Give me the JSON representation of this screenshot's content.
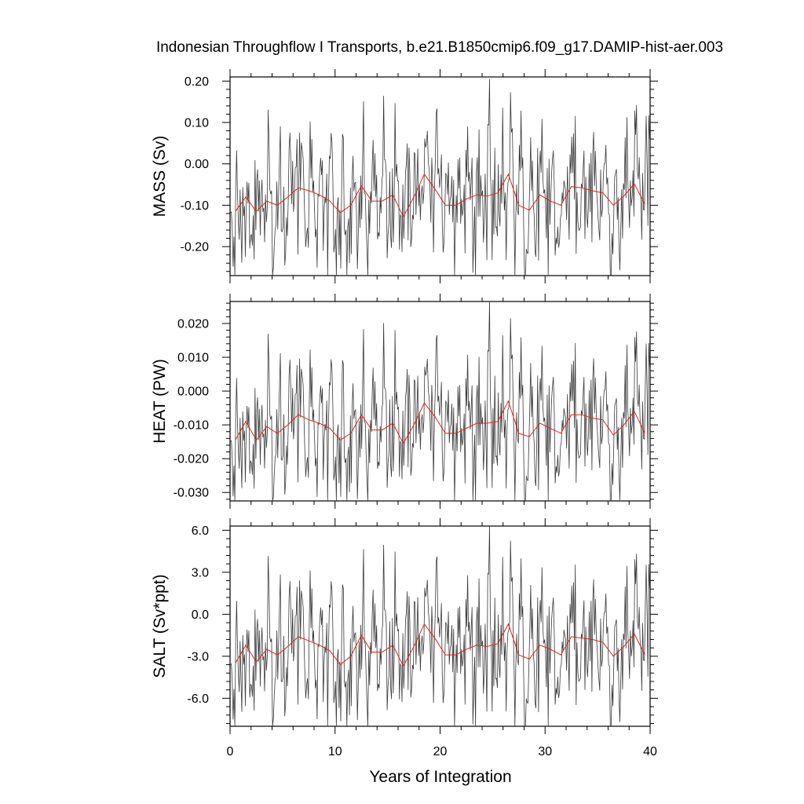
{
  "figure": {
    "title": "Indonesian Throughflow I Transports, b.e21.B1850cmip6.f09_g17.DAMIP-hist-aer.003",
    "xlabel": "Years of Integration",
    "x_ticks": [
      "0",
      "10",
      "20",
      "30",
      "40"
    ],
    "colors": {
      "monthly": "#3a3a3a",
      "annual": "#e0201a",
      "axes": "#000000"
    }
  },
  "chart_data": [
    {
      "type": "line",
      "title": "Indonesian Throughflow I Transports, b.e21.B1850cmip6.f09_g17.DAMIP-hist-aer.003",
      "xlabel": "Years of Integration",
      "ylabel": "MASS (Sv)",
      "xlim": [
        0,
        40
      ],
      "ylim": [
        -0.27,
        0.21
      ],
      "y_ticks": [
        0.2,
        0.1,
        0.0,
        -0.1,
        -0.2
      ],
      "y_tick_labels": [
        "0.20",
        "0.10",
        "0.00",
        "-0.10",
        "-0.20"
      ],
      "monthly_min": -0.27,
      "monthly_max": 0.205,
      "series": [
        {
          "name": "",
          "role": "monthly",
          "color": "#3a3a3a"
        },
        {
          "name": "",
          "role": "annual",
          "color": "#e0201a",
          "x": [
            0.5,
            1.5,
            2.5,
            3.5,
            4.5,
            5.5,
            6.5,
            7.5,
            8.5,
            9.5,
            10.5,
            11.5,
            12.5,
            13.5,
            14.5,
            15.5,
            16.5,
            17.5,
            18.5,
            19.5,
            20.5,
            21.5,
            22.5,
            23.5,
            24.5,
            25.5,
            26.5,
            27.5,
            28.5,
            29.5,
            30.5,
            31.5,
            32.5,
            33.5,
            34.5,
            35.5,
            36.5,
            37.5,
            38.5,
            39.5
          ],
          "y": [
            -0.115,
            -0.08,
            -0.115,
            -0.09,
            -0.1,
            -0.08,
            -0.058,
            -0.065,
            -0.075,
            -0.09,
            -0.118,
            -0.1,
            -0.053,
            -0.09,
            -0.09,
            -0.075,
            -0.128,
            -0.08,
            -0.025,
            -0.06,
            -0.1,
            -0.1,
            -0.085,
            -0.075,
            -0.078,
            -0.07,
            -0.025,
            -0.1,
            -0.112,
            -0.075,
            -0.09,
            -0.1,
            -0.055,
            -0.058,
            -0.065,
            -0.07,
            -0.1,
            -0.078,
            -0.048,
            -0.098
          ]
        }
      ]
    },
    {
      "type": "line",
      "xlabel": "Years of Integration",
      "ylabel": "HEAT (PW)",
      "xlim": [
        0,
        40
      ],
      "ylim": [
        -0.0325,
        0.0265
      ],
      "y_ticks": [
        0.02,
        0.01,
        0.0,
        -0.01,
        -0.02,
        -0.03
      ],
      "y_tick_labels": [
        "0.020",
        "0.010",
        "0.000",
        "-0.010",
        "-0.020",
        "-0.030"
      ],
      "monthly_min": -0.0325,
      "monthly_max": 0.0265,
      "series": [
        {
          "name": "",
          "role": "monthly",
          "color": "#3a3a3a"
        },
        {
          "name": "",
          "role": "annual",
          "color": "#e0201a",
          "x": [
            0.5,
            1.5,
            2.5,
            3.5,
            4.5,
            5.5,
            6.5,
            7.5,
            8.5,
            9.5,
            10.5,
            11.5,
            12.5,
            13.5,
            14.5,
            15.5,
            16.5,
            17.5,
            18.5,
            19.5,
            20.5,
            21.5,
            22.5,
            23.5,
            24.5,
            25.5,
            26.5,
            27.5,
            28.5,
            29.5,
            30.5,
            31.5,
            32.5,
            33.5,
            34.5,
            35.5,
            36.5,
            37.5,
            38.5,
            39.5
          ],
          "y": [
            -0.0145,
            -0.009,
            -0.0145,
            -0.0105,
            -0.0125,
            -0.01,
            -0.007,
            -0.0085,
            -0.0095,
            -0.011,
            -0.0145,
            -0.0125,
            -0.007,
            -0.0115,
            -0.0115,
            -0.0095,
            -0.0155,
            -0.01,
            -0.0035,
            -0.0075,
            -0.0125,
            -0.0125,
            -0.011,
            -0.0095,
            -0.0095,
            -0.009,
            -0.003,
            -0.0125,
            -0.0135,
            -0.0095,
            -0.011,
            -0.0125,
            -0.007,
            -0.007,
            -0.008,
            -0.0085,
            -0.013,
            -0.01,
            -0.006,
            -0.0125
          ]
        }
      ]
    },
    {
      "type": "line",
      "xlabel": "Years of Integration",
      "ylabel": "SALT (Sv*ppt)",
      "xlim": [
        0,
        40
      ],
      "ylim": [
        -8.0,
        6.3
      ],
      "y_ticks": [
        6.0,
        3.0,
        0.0,
        -3.0,
        -6.0
      ],
      "y_tick_labels": [
        "6.0",
        "3.0",
        "0.0",
        "-3.0",
        "-6.0"
      ],
      "monthly_min": -8.0,
      "monthly_max": 6.3,
      "series": [
        {
          "name": "",
          "role": "monthly",
          "color": "#3a3a3a"
        },
        {
          "name": "",
          "role": "annual",
          "color": "#e0201a",
          "x": [
            0.5,
            1.5,
            2.5,
            3.5,
            4.5,
            5.5,
            6.5,
            7.5,
            8.5,
            9.5,
            10.5,
            11.5,
            12.5,
            13.5,
            14.5,
            15.5,
            16.5,
            17.5,
            18.5,
            19.5,
            20.5,
            21.5,
            22.5,
            23.5,
            24.5,
            25.5,
            26.5,
            27.5,
            28.5,
            29.5,
            30.5,
            31.5,
            32.5,
            33.5,
            34.5,
            35.5,
            36.5,
            37.5,
            38.5,
            39.5
          ],
          "y": [
            -3.5,
            -2.2,
            -3.4,
            -2.5,
            -2.9,
            -2.3,
            -1.6,
            -1.9,
            -2.2,
            -2.6,
            -3.6,
            -3.0,
            -1.5,
            -2.7,
            -2.7,
            -2.2,
            -3.7,
            -2.3,
            -0.7,
            -1.7,
            -2.9,
            -2.9,
            -2.5,
            -2.2,
            -2.3,
            -2.1,
            -0.7,
            -2.9,
            -3.2,
            -2.2,
            -2.5,
            -2.9,
            -1.6,
            -1.7,
            -1.8,
            -2.0,
            -3.0,
            -2.3,
            -1.4,
            -2.9
          ]
        }
      ]
    }
  ]
}
